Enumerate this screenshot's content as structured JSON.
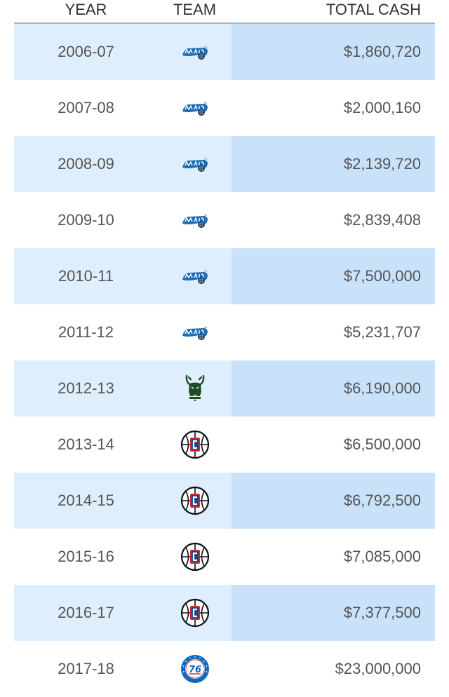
{
  "table": {
    "headers": {
      "year": "YEAR",
      "team": "TEAM",
      "cash": "TOTAL CASH"
    },
    "rows": [
      {
        "year": "2006-07",
        "team_icon": "magic-logo-icon",
        "cash": "$1,860,720"
      },
      {
        "year": "2007-08",
        "team_icon": "magic-logo-icon",
        "cash": "$2,000,160"
      },
      {
        "year": "2008-09",
        "team_icon": "magic-logo-icon",
        "cash": "$2,139,720"
      },
      {
        "year": "2009-10",
        "team_icon": "magic-logo-icon",
        "cash": "$2,839,408"
      },
      {
        "year": "2010-11",
        "team_icon": "magic-logo-icon",
        "cash": "$7,500,000"
      },
      {
        "year": "2011-12",
        "team_icon": "magic-logo-icon",
        "cash": "$5,231,707"
      },
      {
        "year": "2012-13",
        "team_icon": "bucks-logo-icon",
        "cash": "$6,190,000"
      },
      {
        "year": "2013-14",
        "team_icon": "clippers-logo-icon",
        "cash": "$6,500,000"
      },
      {
        "year": "2014-15",
        "team_icon": "clippers-logo-icon",
        "cash": "$6,792,500"
      },
      {
        "year": "2015-16",
        "team_icon": "clippers-logo-icon",
        "cash": "$7,085,000"
      },
      {
        "year": "2016-17",
        "team_icon": "clippers-logo-icon",
        "cash": "$7,377,500"
      },
      {
        "year": "2017-18",
        "team_icon": "76ers-logo-icon",
        "cash": "$23,000,000"
      }
    ]
  },
  "colors": {
    "shade_light": "#deeefc",
    "shade_dark": "#c9e2fa",
    "magic_blue": "#1a6fb8",
    "bucks_green": "#1f4d2b",
    "clippers_red": "#d12a35",
    "clippers_blue": "#1d428a",
    "sixers_blue": "#0a6abf"
  }
}
